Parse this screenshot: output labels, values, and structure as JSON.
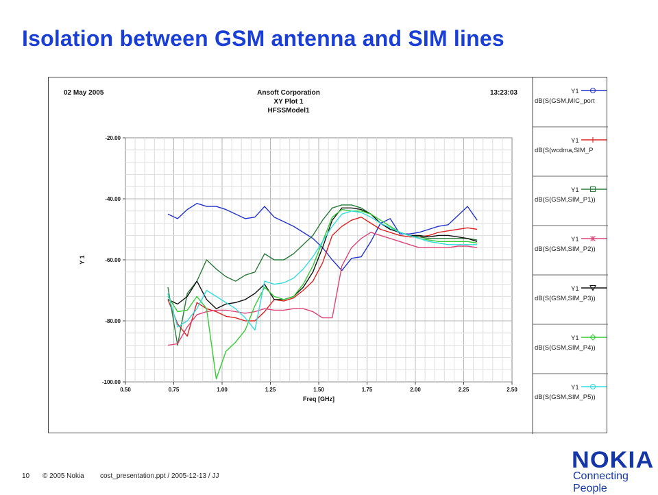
{
  "slide": {
    "title": "Isolation between GSM antenna and SIM lines",
    "footer": {
      "page_number": "10",
      "copyright": "© 2005  Nokia",
      "file_info": "cost_presentation.ppt / 2005-12-13 / JJ"
    },
    "logo": {
      "wordmark": "NOKIA",
      "tagline": "Connecting People"
    }
  },
  "chart_data": {
    "type": "line",
    "header": {
      "date": "02 May 2005",
      "company": "Ansoft Corporation",
      "plot_name": "XY Plot 1",
      "model": "HFSSModel1",
      "time": "13:23:03"
    },
    "xlabel": "Freq [GHz]",
    "ylabel": "Y 1",
    "xlim": [
      0.5,
      2.5
    ],
    "ylim": [
      -100,
      -20
    ],
    "xticks": [
      "0.50",
      "0.75",
      "1.00",
      "1.25",
      "1.50",
      "1.75",
      "2.00",
      "2.25",
      "2.50"
    ],
    "yticks": [
      "-20.00",
      "-40.00",
      "-60.00",
      "-80.00",
      "-100.00"
    ],
    "grid": true,
    "legend_position": "right",
    "series": [
      {
        "name": "dB(S(GSM,MIC_port",
        "axis": "Y1",
        "marker": "circle",
        "color": "#2233cc",
        "x": [
          0.72,
          0.77,
          0.82,
          0.87,
          0.92,
          0.97,
          1.02,
          1.07,
          1.12,
          1.17,
          1.22,
          1.27,
          1.32,
          1.37,
          1.42,
          1.47,
          1.52,
          1.57,
          1.62,
          1.67,
          1.72,
          1.77,
          1.82,
          1.87,
          1.92,
          1.97,
          2.02,
          2.07,
          2.12,
          2.17,
          2.22,
          2.27,
          2.32
        ],
        "y": [
          -45,
          -46.5,
          -43.5,
          -41.5,
          -42.5,
          -42.5,
          -43.5,
          -45,
          -46.5,
          -46,
          -42.5,
          -46,
          -47.5,
          -49,
          -51,
          -53,
          -56,
          -60,
          -63.5,
          -59.5,
          -59,
          -54,
          -48,
          -46.5,
          -51.5,
          -51.5,
          -51,
          -50,
          -49,
          -48.5,
          -45.5,
          -42.5,
          -47
        ]
      },
      {
        "name": "dB(S(wcdma,SIM_P",
        "axis": "Y1",
        "marker": "plus",
        "color": "#dd2222",
        "x": [
          0.72,
          0.77,
          0.82,
          0.87,
          0.92,
          0.97,
          1.02,
          1.07,
          1.12,
          1.17,
          1.22,
          1.27,
          1.32,
          1.37,
          1.42,
          1.47,
          1.52,
          1.57,
          1.62,
          1.67,
          1.72,
          1.77,
          1.82,
          1.87,
          1.92,
          1.97,
          2.02,
          2.07,
          2.12,
          2.17,
          2.22,
          2.27,
          2.32
        ],
        "y": [
          -73,
          -81,
          -85,
          -74,
          -76,
          -77,
          -78.5,
          -79,
          -80,
          -80,
          -77,
          -73,
          -73.5,
          -72.5,
          -70,
          -67,
          -61,
          -52,
          -49,
          -47,
          -46,
          -48,
          -50,
          -51,
          -52,
          -52.5,
          -52.5,
          -52,
          -51,
          -50.5,
          -50,
          -49.5,
          -50
        ]
      },
      {
        "name": "dB(S(GSM,SIM_P1))",
        "axis": "Y1",
        "marker": "square",
        "color": "#2a7a3a",
        "x": [
          0.72,
          0.77,
          0.82,
          0.87,
          0.92,
          0.97,
          1.02,
          1.07,
          1.12,
          1.17,
          1.22,
          1.27,
          1.32,
          1.37,
          1.42,
          1.47,
          1.52,
          1.57,
          1.62,
          1.67,
          1.72,
          1.77,
          1.82,
          1.87,
          1.92,
          1.97,
          2.02,
          2.07,
          2.12,
          2.17,
          2.22,
          2.27,
          2.32
        ],
        "y": [
          -69,
          -88,
          -71,
          -67,
          -60,
          -63,
          -65.5,
          -67,
          -65,
          -64,
          -58,
          -60,
          -60,
          -58,
          -55,
          -52,
          -47,
          -43,
          -42,
          -42,
          -43,
          -45,
          -48,
          -50,
          -51,
          -52,
          -52.5,
          -53,
          -53,
          -53,
          -53,
          -53,
          -53.5
        ]
      },
      {
        "name": "dB(S(GSM,SIM_P2))",
        "axis": "Y1",
        "marker": "asterisk",
        "color": "#dd4477",
        "x": [
          0.72,
          0.77,
          0.82,
          0.87,
          0.92,
          0.97,
          1.02,
          1.07,
          1.12,
          1.17,
          1.22,
          1.27,
          1.32,
          1.37,
          1.42,
          1.47,
          1.52,
          1.57,
          1.62,
          1.67,
          1.72,
          1.77,
          1.82,
          1.87,
          1.92,
          1.97,
          2.02,
          2.07,
          2.12,
          2.17,
          2.22,
          2.27,
          2.32
        ],
        "y": [
          -88,
          -87.5,
          -82,
          -78,
          -77,
          -76.5,
          -76.5,
          -77,
          -77.5,
          -77,
          -76,
          -76.5,
          -76.5,
          -76,
          -76,
          -77,
          -79,
          -79,
          -62,
          -56,
          -53,
          -51,
          -52,
          -53,
          -54,
          -55,
          -56,
          -56,
          -56,
          -56,
          -55.5,
          -55.5,
          -56
        ]
      },
      {
        "name": "dB(S(GSM,SIM_P3))",
        "axis": "Y1",
        "marker": "triangle",
        "color": "#111111",
        "x": [
          0.72,
          0.77,
          0.82,
          0.87,
          0.92,
          0.97,
          1.02,
          1.07,
          1.12,
          1.17,
          1.22,
          1.27,
          1.32,
          1.37,
          1.42,
          1.47,
          1.52,
          1.57,
          1.62,
          1.67,
          1.72,
          1.77,
          1.82,
          1.87,
          1.92,
          1.97,
          2.02,
          2.07,
          2.12,
          2.17,
          2.22,
          2.27,
          2.32
        ],
        "y": [
          -73,
          -74.5,
          -72,
          -67,
          -73,
          -76,
          -74.5,
          -74,
          -73,
          -71,
          -68,
          -73,
          -73,
          -72,
          -69,
          -64,
          -56,
          -47,
          -43,
          -43,
          -43.5,
          -45,
          -48,
          -50,
          -51,
          -52,
          -52,
          -52.5,
          -52,
          -52,
          -52.5,
          -53,
          -54
        ]
      },
      {
        "name": "dB(S(GSM,SIM_P4))",
        "axis": "Y1",
        "marker": "diamond",
        "color": "#33cc33",
        "x": [
          0.72,
          0.77,
          0.82,
          0.87,
          0.92,
          0.97,
          1.02,
          1.07,
          1.12,
          1.17,
          1.22,
          1.27,
          1.32,
          1.37,
          1.42,
          1.47,
          1.52,
          1.57,
          1.62,
          1.67,
          1.72,
          1.77,
          1.82,
          1.87,
          1.92,
          1.97,
          2.02,
          2.07,
          2.12,
          2.17,
          2.22,
          2.27,
          2.32
        ],
        "y": [
          -72,
          -77,
          -76.5,
          -72,
          -76,
          -99,
          -90,
          -87,
          -83,
          -75,
          -69,
          -72,
          -73,
          -72,
          -68,
          -62,
          -54,
          -46,
          -43.5,
          -44,
          -44,
          -45,
          -47,
          -49,
          -51,
          -52,
          -53,
          -53.5,
          -54,
          -54,
          -54,
          -54,
          -54.5
        ]
      },
      {
        "name": "dB(S(GSM,SIM_P5))",
        "axis": "Y1",
        "marker": "circle",
        "color": "#33dddd",
        "x": [
          0.72,
          0.77,
          0.82,
          0.87,
          0.92,
          0.97,
          1.02,
          1.07,
          1.12,
          1.17,
          1.22,
          1.27,
          1.32,
          1.37,
          1.42,
          1.47,
          1.52,
          1.57,
          1.62,
          1.67,
          1.72,
          1.77,
          1.82,
          1.87,
          1.92,
          1.97,
          2.02,
          2.07,
          2.12,
          2.17,
          2.22,
          2.27,
          2.32
        ],
        "y": [
          -71,
          -82,
          -80,
          -76,
          -70,
          -72,
          -74,
          -76,
          -79,
          -83,
          -67,
          -68,
          -67.5,
          -66,
          -63,
          -59,
          -54,
          -49,
          -45,
          -44,
          -44.5,
          -46,
          -48,
          -49.5,
          -51,
          -52,
          -53,
          -54,
          -54.5,
          -55,
          -55,
          -55,
          -55
        ]
      }
    ]
  }
}
